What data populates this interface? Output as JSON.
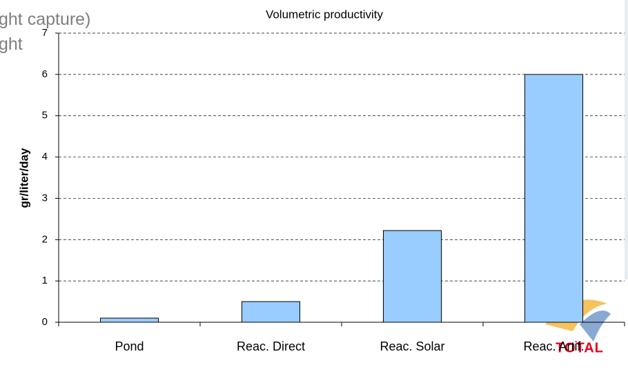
{
  "background_text": [
    "ght capture)",
    "ght"
  ],
  "logo": "TOTAL",
  "chart_data": {
    "type": "bar",
    "title": "Volumetric productivity",
    "ylabel": "gr/liter/day",
    "categories": [
      "Pond",
      "Reac. Direct",
      "Reac. Solar",
      "Reac. Artif."
    ],
    "values": [
      0.1,
      0.5,
      2.22,
      6
    ],
    "color": "#99ccff",
    "ylim": [
      0,
      7
    ],
    "yticks": [
      0,
      1,
      2,
      3,
      4,
      5,
      6,
      7
    ],
    "grid": true
  }
}
